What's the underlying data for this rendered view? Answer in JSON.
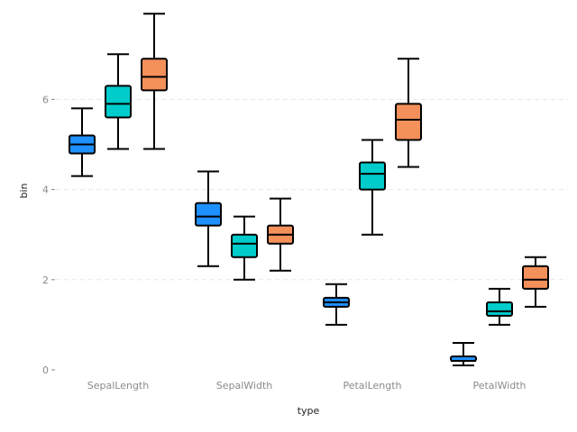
{
  "chart_data": {
    "type": "box",
    "xlabel": "type",
    "ylabel": "bin",
    "categories": [
      "SepalLength",
      "SepalWidth",
      "PetalLength",
      "PetalWidth"
    ],
    "ylim": [
      0,
      7.9
    ],
    "yticks": [
      0,
      2,
      4,
      6
    ],
    "grid": true,
    "series": [
      {
        "color": "#1e90ff",
        "boxes": [
          {
            "min": 4.3,
            "q1": 4.8,
            "median": 5.0,
            "q3": 5.2,
            "max": 5.8
          },
          {
            "min": 2.3,
            "q1": 3.2,
            "median": 3.4,
            "q3": 3.7,
            "max": 4.4
          },
          {
            "min": 1.0,
            "q1": 1.4,
            "median": 1.5,
            "q3": 1.6,
            "max": 1.9
          },
          {
            "min": 0.1,
            "q1": 0.2,
            "median": 0.2,
            "q3": 0.3,
            "max": 0.6
          }
        ]
      },
      {
        "color": "#00cccc",
        "boxes": [
          {
            "min": 4.9,
            "q1": 5.6,
            "median": 5.9,
            "q3": 6.3,
            "max": 7.0
          },
          {
            "min": 2.0,
            "q1": 2.5,
            "median": 2.8,
            "q3": 3.0,
            "max": 3.4
          },
          {
            "min": 3.0,
            "q1": 4.0,
            "median": 4.35,
            "q3": 4.6,
            "max": 5.1
          },
          {
            "min": 1.0,
            "q1": 1.2,
            "median": 1.3,
            "q3": 1.5,
            "max": 1.8
          }
        ]
      },
      {
        "color": "#f4905a",
        "boxes": [
          {
            "min": 4.9,
            "q1": 6.2,
            "median": 6.5,
            "q3": 6.9,
            "max": 7.9
          },
          {
            "min": 2.2,
            "q1": 2.8,
            "median": 3.0,
            "q3": 3.2,
            "max": 3.8
          },
          {
            "min": 4.5,
            "q1": 5.1,
            "median": 5.55,
            "q3": 5.9,
            "max": 6.9
          },
          {
            "min": 1.4,
            "q1": 1.8,
            "median": 2.0,
            "q3": 2.3,
            "max": 2.5
          }
        ]
      }
    ]
  }
}
